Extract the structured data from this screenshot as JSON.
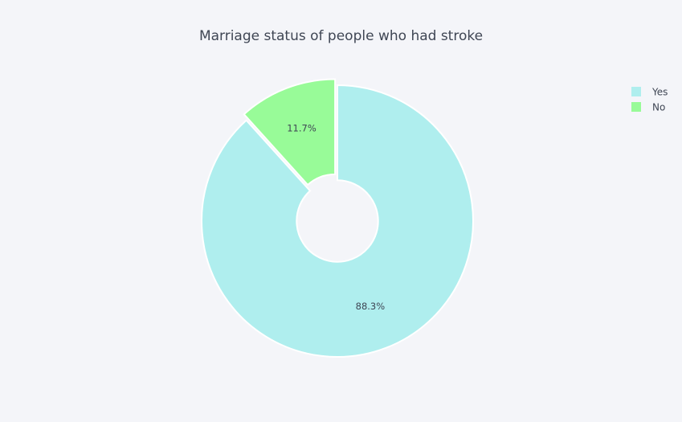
{
  "chart_data": {
    "type": "pie",
    "hole": 0.3,
    "title": "Marriage status of people who had stroke",
    "legend_position": "top-right",
    "slices": [
      {
        "label": "Yes",
        "value": 88.3,
        "text": "88.3%",
        "color": "#afeeee"
      },
      {
        "label": "No",
        "value": 11.7,
        "text": "11.7%",
        "color": "#98fb98",
        "pulled": true
      }
    ]
  }
}
